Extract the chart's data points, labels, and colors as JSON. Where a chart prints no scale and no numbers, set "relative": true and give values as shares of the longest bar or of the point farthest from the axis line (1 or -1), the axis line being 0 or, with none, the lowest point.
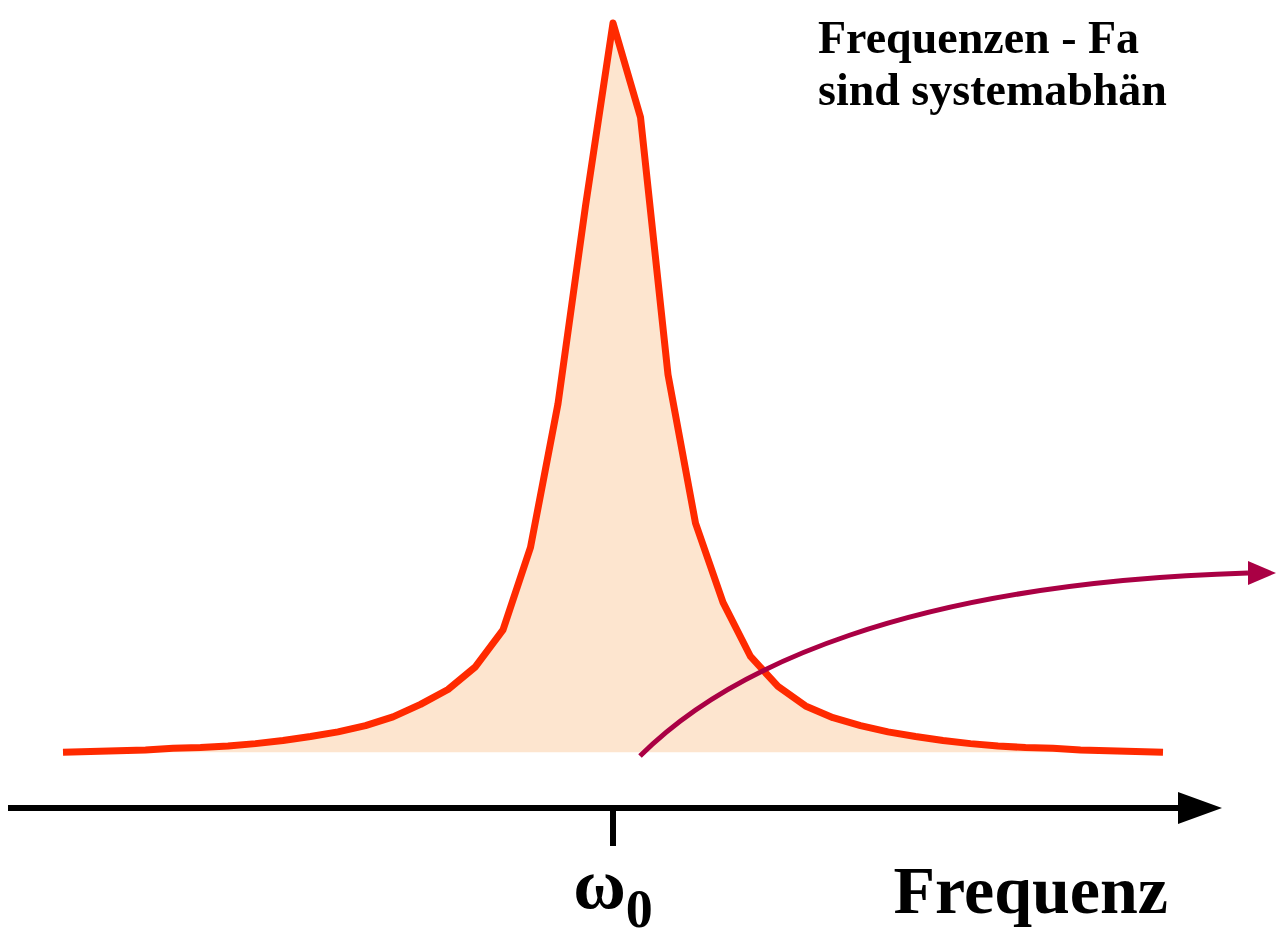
{
  "chart_data": {
    "type": "area",
    "relative": true,
    "xlabel": "Frequenz",
    "annotations": [
      "Frequenzen - Fa",
      "sind systemabhän",
      "ω$_{0}$"
    ],
    "categories": [
      null,
      null,
      null,
      null,
      null,
      null,
      null,
      null,
      null,
      null,
      null,
      null,
      null,
      null,
      null,
      null,
      null,
      null,
      null,
      null,
      null,
      null,
      null,
      null,
      null,
      null,
      null,
      null,
      null,
      null,
      null,
      null,
      null,
      null,
      null,
      null,
      null,
      null,
      null,
      null,
      null
    ],
    "series": [
      {
        "color": "#ff2a00",
        "values": [
          0.071,
          0.072,
          0.073,
          0.074,
          0.076,
          0.077,
          0.079,
          0.082,
          0.086,
          0.091,
          0.097,
          0.105,
          0.116,
          0.132,
          0.151,
          0.18,
          0.227,
          0.332,
          0.515,
          0.767,
          1,
          0.88,
          0.552,
          0.363,
          0.262,
          0.193,
          0.155,
          0.13,
          0.115,
          0.105,
          0.097,
          0.091,
          0.086,
          0.082,
          0.079,
          0.077,
          0.076,
          0.074,
          0.073,
          0.072,
          0.071
        ]
      }
    ]
  }
}
